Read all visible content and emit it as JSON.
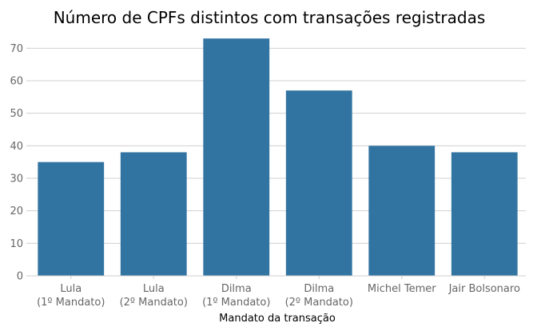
{
  "chart_data": {
    "type": "bar",
    "title": "Número de CPFs distintos com transações registradas",
    "xlabel": "Mandato da transação",
    "ylabel": "",
    "categories": [
      [
        "Lula",
        "(1º Mandato)"
      ],
      [
        "Lula",
        "(2º Mandato)"
      ],
      [
        "Dilma",
        "(1º Mandato)"
      ],
      [
        "Dilma",
        "(2º Mandato)"
      ],
      [
        "Michel Temer"
      ],
      [
        "Jair Bolsonaro"
      ]
    ],
    "values": [
      35,
      38,
      73,
      57,
      40,
      38
    ],
    "ylim": [
      0,
      75
    ],
    "yticks": [
      0,
      10,
      20,
      30,
      40,
      50,
      60,
      70
    ],
    "grid": "horizontal",
    "bar_color": "#3274a1"
  }
}
